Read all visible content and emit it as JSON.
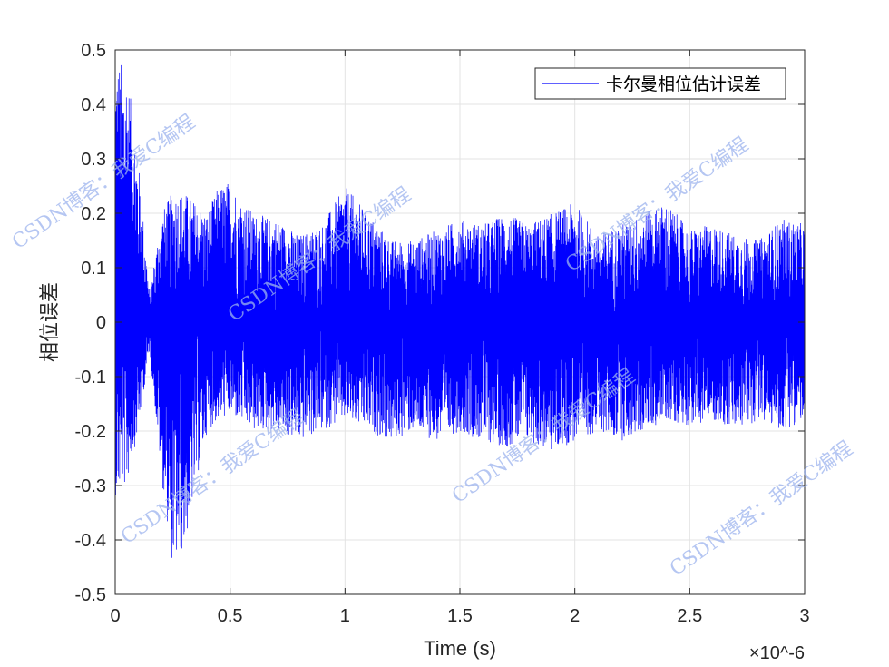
{
  "chart_data": {
    "type": "line",
    "title": "",
    "xlabel": "Time (s)",
    "ylabel": "相位误差",
    "x_exponent": "×10^-6",
    "xlim": [
      0,
      3
    ],
    "ylim": [
      -0.5,
      0.5
    ],
    "xticks": [
      "0",
      "0.5",
      "1",
      "1.5",
      "2",
      "2.5",
      "3"
    ],
    "yticks": [
      "0.5",
      "0.4",
      "0.3",
      "0.2",
      "0.1",
      "0",
      "-0.1",
      "-0.2",
      "-0.3",
      "-0.4",
      "-0.5"
    ],
    "grid": true,
    "legend_position": "top-right",
    "series": [
      {
        "name": "卡尔曼相位估计误差",
        "color": "#0000ff",
        "x": [
          0,
          0.05,
          0.1,
          0.15,
          0.2,
          0.25,
          0.3,
          0.35,
          0.4,
          0.45,
          0.5,
          0.6,
          0.7,
          0.8,
          0.9,
          1.0,
          1.1,
          1.2,
          1.3,
          1.4,
          1.5,
          1.6,
          1.7,
          1.8,
          1.9,
          2.0,
          2.1,
          2.2,
          2.3,
          2.4,
          2.5,
          2.6,
          2.7,
          2.8,
          2.9,
          3.0
        ],
        "envelope_upper": [
          0.49,
          0.47,
          0.3,
          0.05,
          0.2,
          0.24,
          0.24,
          0.22,
          0.2,
          0.25,
          0.26,
          0.2,
          0.19,
          0.16,
          0.18,
          0.25,
          0.2,
          0.15,
          0.15,
          0.17,
          0.19,
          0.18,
          0.2,
          0.18,
          0.2,
          0.22,
          0.16,
          0.18,
          0.2,
          0.22,
          0.17,
          0.18,
          0.16,
          0.15,
          0.19,
          0.18
        ],
        "envelope_lower": [
          -0.32,
          -0.3,
          -0.2,
          -0.05,
          -0.28,
          -0.45,
          -0.42,
          -0.3,
          -0.2,
          -0.18,
          -0.17,
          -0.2,
          -0.2,
          -0.22,
          -0.2,
          -0.18,
          -0.2,
          -0.22,
          -0.2,
          -0.22,
          -0.2,
          -0.22,
          -0.23,
          -0.22,
          -0.24,
          -0.22,
          -0.2,
          -0.22,
          -0.2,
          -0.18,
          -0.19,
          -0.18,
          -0.2,
          -0.18,
          -0.2,
          -0.18
        ]
      }
    ]
  },
  "watermark_text": "CSDN博客：我爱C编程"
}
